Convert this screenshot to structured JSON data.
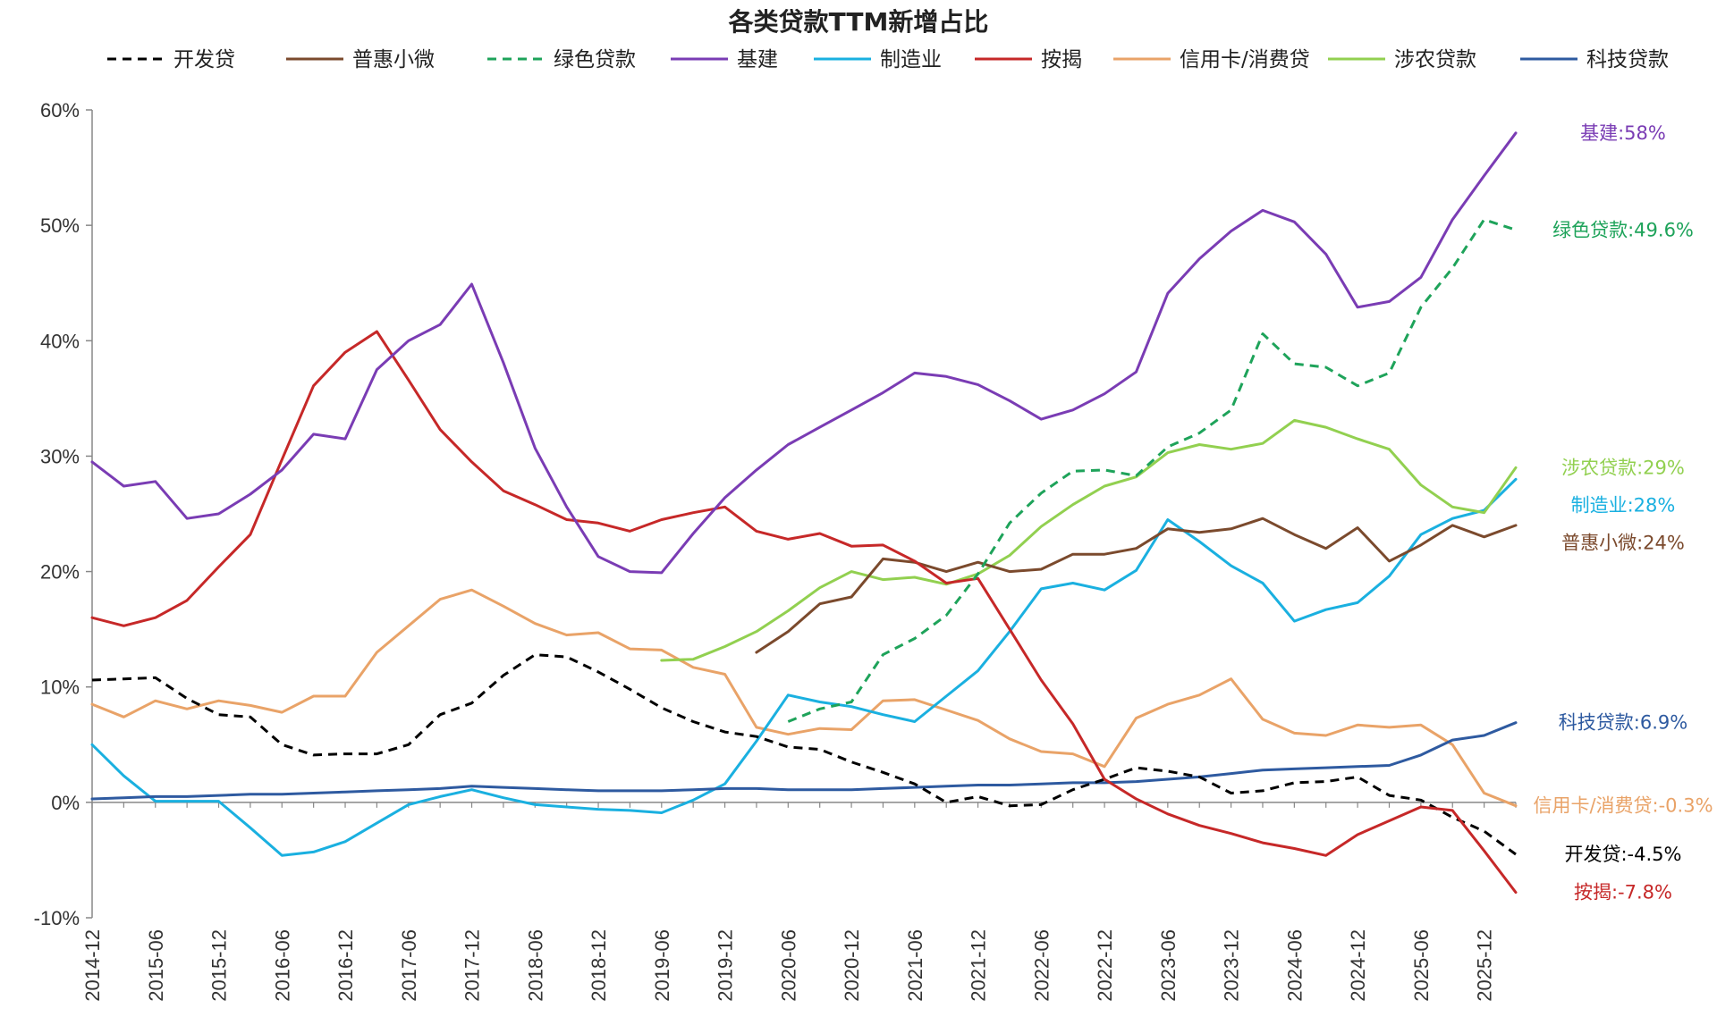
{
  "chart_data": {
    "type": "line",
    "title": "各类贷款TTM新增占比",
    "ylim": [
      -10,
      60
    ],
    "yticks": [
      "60%",
      "50%",
      "40%",
      "30%",
      "20%",
      "10%",
      "0%",
      "-10%"
    ],
    "ytick_values": [
      60,
      50,
      40,
      30,
      20,
      10,
      0,
      -10
    ],
    "x": [
      "2014-12",
      "2015-03",
      "2015-06",
      "2015-09",
      "2015-12",
      "2016-03",
      "2016-06",
      "2016-09",
      "2016-12",
      "2017-03",
      "2017-06",
      "2017-09",
      "2017-12",
      "2018-03",
      "2018-06",
      "2018-09",
      "2018-12",
      "2019-03",
      "2019-06",
      "2019-09",
      "2019-12",
      "2020-03",
      "2020-06",
      "2020-09",
      "2020-12",
      "2021-03",
      "2021-06",
      "2021-09",
      "2021-12",
      "2022-03",
      "2022-06",
      "2022-09",
      "2022-12",
      "2023-03",
      "2023-06",
      "2023-09",
      "2023-12",
      "2024-03",
      "2024-06",
      "2024-09",
      "2024-12",
      "2025-03",
      "2025-06",
      "2025-09",
      "2025-12",
      "2026-03"
    ],
    "xtick_labels": [
      "2014-12",
      "2015-06",
      "2015-12",
      "2016-06",
      "2016-12",
      "2017-06",
      "2017-12",
      "2018-06",
      "2018-12",
      "2019-06",
      "2019-12",
      "2020-06",
      "2020-12",
      "2021-06",
      "2021-12",
      "2022-06",
      "2022-12",
      "2023-06",
      "2023-12",
      "2024-06",
      "2024-12",
      "2025-06",
      "2025-12"
    ],
    "grid": false,
    "legend_position": "top",
    "series": [
      {
        "name": "开发贷",
        "color": "#000000",
        "dash": true,
        "values": [
          10.6,
          10.7,
          10.8,
          9.0,
          7.6,
          7.4,
          5.0,
          4.1,
          4.2,
          4.2,
          5.0,
          7.6,
          8.6,
          11.0,
          12.8,
          12.6,
          11.3,
          9.8,
          8.2,
          7.0,
          6.1,
          5.7,
          4.8,
          4.6,
          3.5,
          2.6,
          1.6,
          0.0,
          0.5,
          -0.3,
          -0.2,
          1.1,
          2.0,
          3.0,
          2.7,
          2.2,
          0.8,
          1.0,
          1.7,
          1.8,
          2.2,
          0.6,
          0.2,
          -1.3,
          -2.5,
          -4.5
        ],
        "end_label": "开发贷:-4.5%",
        "label_color": "#000000"
      },
      {
        "name": "普惠小微",
        "color": "#7b4a2d",
        "dash": false,
        "values": [
          null,
          null,
          null,
          null,
          null,
          null,
          null,
          null,
          null,
          null,
          null,
          null,
          null,
          null,
          null,
          null,
          null,
          null,
          null,
          null,
          null,
          13.0,
          14.8,
          17.2,
          17.8,
          21.1,
          20.8,
          20.0,
          20.8,
          20.0,
          20.2,
          21.5,
          21.5,
          22.0,
          23.7,
          23.4,
          23.7,
          24.6,
          23.2,
          22.0,
          23.8,
          20.9,
          22.3,
          24.0,
          23.0,
          24.0
        ],
        "end_label": "普惠小微:24%",
        "label_color": "#7b4a2d"
      },
      {
        "name": "绿色贷款",
        "color": "#1ea35a",
        "dash": true,
        "values": [
          null,
          null,
          null,
          null,
          null,
          null,
          null,
          null,
          null,
          null,
          null,
          null,
          null,
          null,
          null,
          null,
          null,
          null,
          null,
          null,
          null,
          null,
          7.0,
          8.1,
          8.7,
          12.8,
          14.2,
          16.2,
          19.8,
          24.2,
          26.8,
          28.7,
          28.8,
          28.3,
          30.8,
          32.0,
          34.0,
          40.6,
          38.0,
          37.7,
          36.1,
          37.2,
          42.9,
          46.3,
          50.5,
          49.6
        ],
        "end_label": "绿色贷款:49.6%",
        "label_color": "#1ea35a"
      },
      {
        "name": "基建",
        "color": "#7a3cb4",
        "dash": false,
        "values": [
          29.5,
          27.4,
          27.8,
          24.6,
          25.0,
          26.7,
          28.8,
          31.9,
          31.5,
          37.5,
          40.0,
          41.4,
          44.9,
          38.1,
          30.7,
          25.6,
          21.3,
          20.0,
          19.9,
          23.3,
          26.4,
          28.8,
          31.0,
          32.5,
          34.0,
          35.5,
          37.2,
          36.9,
          36.2,
          34.8,
          33.2,
          34.0,
          35.4,
          37.3,
          44.1,
          47.1,
          49.5,
          51.3,
          50.3,
          47.5,
          42.9,
          43.4,
          45.5,
          50.5,
          54.3,
          58.0
        ],
        "end_label": "基建:58%",
        "label_color": "#7a3cb4"
      },
      {
        "name": "制造业",
        "color": "#1ab0e0",
        "dash": false,
        "values": [
          5.0,
          2.3,
          0.1,
          0.1,
          0.1,
          -2.2,
          -4.6,
          -4.3,
          -3.4,
          -1.8,
          -0.2,
          0.5,
          1.1,
          0.4,
          -0.2,
          -0.4,
          -0.6,
          -0.7,
          -0.9,
          0.2,
          1.6,
          5.3,
          9.3,
          8.7,
          8.3,
          7.6,
          7.0,
          9.2,
          11.4,
          14.8,
          18.5,
          19.0,
          18.4,
          20.1,
          24.5,
          22.6,
          20.5,
          19.0,
          15.7,
          16.7,
          17.3,
          19.6,
          23.2,
          24.6,
          25.3,
          28.0
        ],
        "end_label": "制造业:28%",
        "label_color": "#1ab0e0"
      },
      {
        "name": "按揭",
        "color": "#c62828",
        "dash": false,
        "values": [
          16.0,
          15.3,
          16.0,
          17.5,
          20.4,
          23.2,
          29.7,
          36.1,
          39.0,
          40.8,
          36.6,
          32.3,
          29.5,
          27.0,
          25.8,
          24.5,
          24.2,
          23.5,
          24.5,
          25.1,
          25.6,
          23.5,
          22.8,
          23.3,
          22.2,
          22.3,
          20.9,
          19.0,
          19.4,
          15.0,
          10.6,
          6.8,
          2.0,
          0.3,
          -1.0,
          -2.0,
          -2.7,
          -3.5,
          -4.0,
          -4.6,
          -2.8,
          -1.6,
          -0.4,
          -0.7,
          -4.2,
          -7.8
        ],
        "end_label": "按揭:-7.8%",
        "label_color": "#c62828"
      },
      {
        "name": "信用卡/消费贷",
        "color": "#e9a368",
        "dash": false,
        "values": [
          8.5,
          7.4,
          8.8,
          8.1,
          8.8,
          8.4,
          7.8,
          9.2,
          9.2,
          13.0,
          15.3,
          17.6,
          18.4,
          17.0,
          15.5,
          14.5,
          14.7,
          13.3,
          13.2,
          11.7,
          11.1,
          6.5,
          5.9,
          6.4,
          6.3,
          8.8,
          8.9,
          8.0,
          7.1,
          5.5,
          4.4,
          4.2,
          3.1,
          7.3,
          8.5,
          9.3,
          10.7,
          7.2,
          6.0,
          5.8,
          6.7,
          6.5,
          6.7,
          5.0,
          0.8,
          -0.3
        ],
        "end_label": "信用卡/消费贷:-0.3%",
        "label_color": "#e9a368"
      },
      {
        "name": "涉农贷款",
        "color": "#92d050",
        "dash": false,
        "values": [
          null,
          null,
          null,
          null,
          null,
          null,
          null,
          null,
          null,
          null,
          null,
          null,
          null,
          null,
          null,
          null,
          null,
          null,
          12.3,
          12.4,
          13.5,
          14.8,
          16.6,
          18.6,
          20.0,
          19.3,
          19.5,
          18.9,
          19.8,
          21.4,
          23.9,
          25.8,
          27.4,
          28.2,
          30.3,
          31.0,
          30.6,
          31.1,
          33.1,
          32.5,
          31.5,
          30.6,
          27.5,
          25.6,
          25.1,
          29.0
        ],
        "end_label": "涉农贷款:29%",
        "label_color": "#92d050"
      },
      {
        "name": "科技贷款",
        "color": "#2e5aa0",
        "dash": false,
        "values": [
          0.3,
          0.4,
          0.5,
          0.5,
          0.6,
          0.7,
          0.7,
          0.8,
          0.9,
          1.0,
          1.1,
          1.2,
          1.4,
          1.3,
          1.2,
          1.1,
          1.0,
          1.0,
          1.0,
          1.1,
          1.2,
          1.2,
          1.1,
          1.1,
          1.1,
          1.2,
          1.3,
          1.4,
          1.5,
          1.5,
          1.6,
          1.7,
          1.7,
          1.8,
          2.0,
          2.2,
          2.5,
          2.8,
          2.9,
          3.0,
          3.1,
          3.2,
          4.1,
          5.4,
          5.8,
          6.9
        ],
        "end_label": "科技贷款:6.9%",
        "label_color": "#2e5aa0"
      }
    ]
  }
}
